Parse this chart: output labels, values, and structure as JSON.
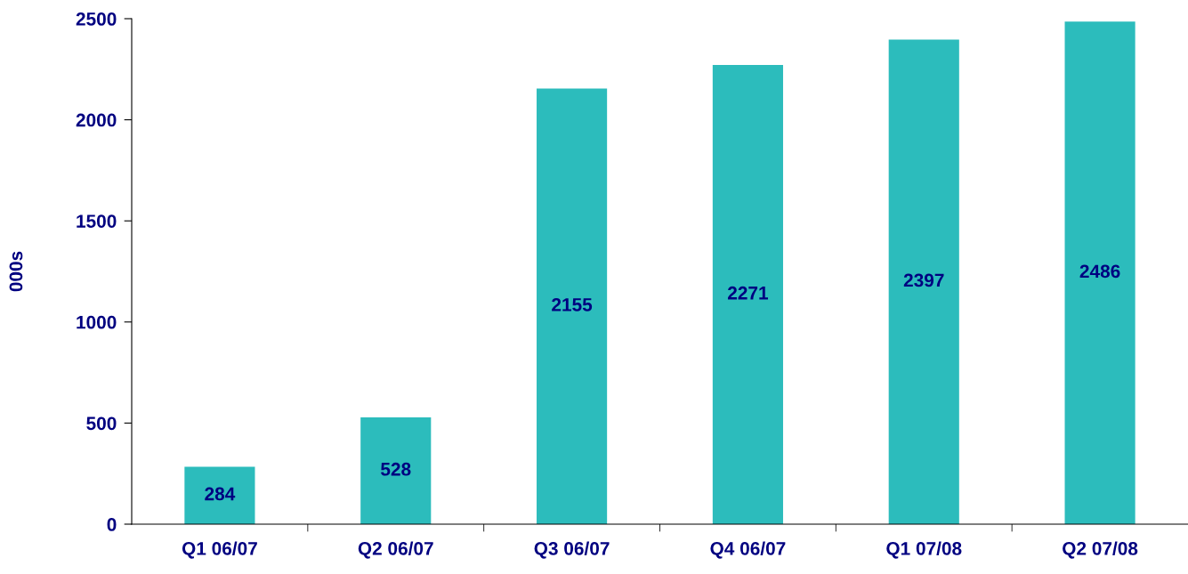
{
  "chart_data": {
    "type": "bar",
    "ylabel": "000s",
    "categories": [
      "Q1 06/07",
      "Q2 06/07",
      "Q3 06/07",
      "Q4 06/07",
      "Q1 07/08",
      "Q2 07/08"
    ],
    "values": [
      284,
      528,
      2155,
      2271,
      2397,
      2486
    ],
    "color": "#2cbcbc",
    "ylim": [
      0,
      2500
    ],
    "yticks": [
      0,
      500,
      1000,
      1500,
      2000,
      2500
    ],
    "grid": false,
    "legend": false,
    "data_labels": true
  }
}
